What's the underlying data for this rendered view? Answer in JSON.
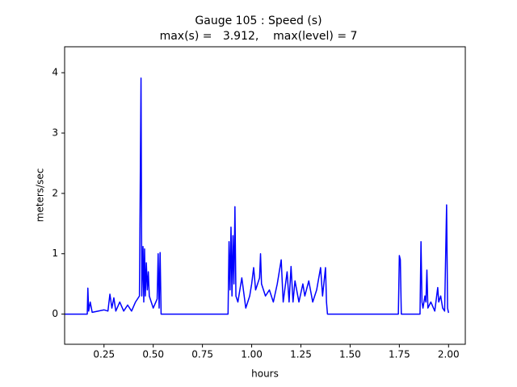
{
  "chart_data": {
    "type": "line",
    "title": "Gauge 105 : Speed (s)",
    "subtitle": "max(s) =   3.912,    max(level) = 7",
    "xlabel": "hours",
    "ylabel": "meters/sec",
    "xlim": [
      0.05,
      2.085
    ],
    "ylim": [
      -0.5,
      4.43
    ],
    "xticks": [
      0.25,
      {
        "value": 0.5,
        "label": "0.50"
      },
      0.75,
      {
        "value": 1,
        "label": "1.00"
      },
      1.25,
      {
        "value": 1.5,
        "label": "1.50"
      },
      1.75,
      {
        "value": 2,
        "label": "2.00"
      }
    ],
    "yticks": [
      0,
      1,
      2,
      3,
      4
    ],
    "grid": false,
    "x": [
      0.05,
      0.165,
      0.168,
      0.172,
      0.18,
      0.19,
      0.22,
      0.25,
      0.27,
      0.28,
      0.29,
      0.3,
      0.31,
      0.33,
      0.35,
      0.37,
      0.39,
      0.41,
      0.43,
      0.438,
      0.442,
      0.448,
      0.452,
      0.456,
      0.46,
      0.465,
      0.47,
      0.475,
      0.48,
      0.49,
      0.5,
      0.52,
      0.525,
      0.53,
      0.535,
      0.54,
      0.88,
      0.885,
      0.89,
      0.895,
      0.9,
      0.905,
      0.91,
      0.915,
      0.92,
      0.93,
      0.95,
      0.97,
      0.99,
      1.0,
      1.01,
      1.02,
      1.04,
      1.045,
      1.05,
      1.07,
      1.09,
      1.11,
      1.13,
      1.15,
      1.16,
      1.18,
      1.19,
      1.2,
      1.21,
      1.22,
      1.24,
      1.26,
      1.27,
      1.29,
      1.31,
      1.33,
      1.35,
      1.36,
      1.375,
      1.38,
      1.385,
      1.745,
      1.75,
      1.755,
      1.76,
      1.855,
      1.86,
      1.865,
      1.87,
      1.88,
      1.885,
      1.89,
      1.895,
      1.91,
      1.93,
      1.945,
      1.95,
      1.96,
      1.97,
      1.98,
      1.99,
      1.995,
      2.0
    ],
    "series": [
      {
        "name": "speed",
        "color": "#0000ff",
        "values": [
          0,
          0,
          0.43,
          0.05,
          0.2,
          0.03,
          0.05,
          0.07,
          0.05,
          0.33,
          0.1,
          0.27,
          0.05,
          0.2,
          0.05,
          0.15,
          0.05,
          0.2,
          0.3,
          3.91,
          0.3,
          1.12,
          0.2,
          1.08,
          0.3,
          0.85,
          0.4,
          0.7,
          0.3,
          0.2,
          0.1,
          0.25,
          1.0,
          0.1,
          1.02,
          0,
          0,
          1.2,
          0.4,
          1.44,
          0.3,
          1.3,
          0.5,
          1.78,
          0.3,
          0.2,
          0.6,
          0.1,
          0.3,
          0.5,
          0.77,
          0.4,
          0.6,
          1.0,
          0.5,
          0.3,
          0.4,
          0.2,
          0.5,
          0.9,
          0.2,
          0.7,
          0.2,
          0.79,
          0.2,
          0.55,
          0.2,
          0.5,
          0.3,
          0.55,
          0.2,
          0.4,
          0.77,
          0.3,
          0.77,
          0.2,
          0,
          0,
          0.97,
          0.9,
          0,
          0,
          1.2,
          0.2,
          0.1,
          0.3,
          0.2,
          0.73,
          0.1,
          0.2,
          0.05,
          0.44,
          0.2,
          0.3,
          0.1,
          0.05,
          1.81,
          0.1,
          0.02
        ]
      }
    ]
  }
}
